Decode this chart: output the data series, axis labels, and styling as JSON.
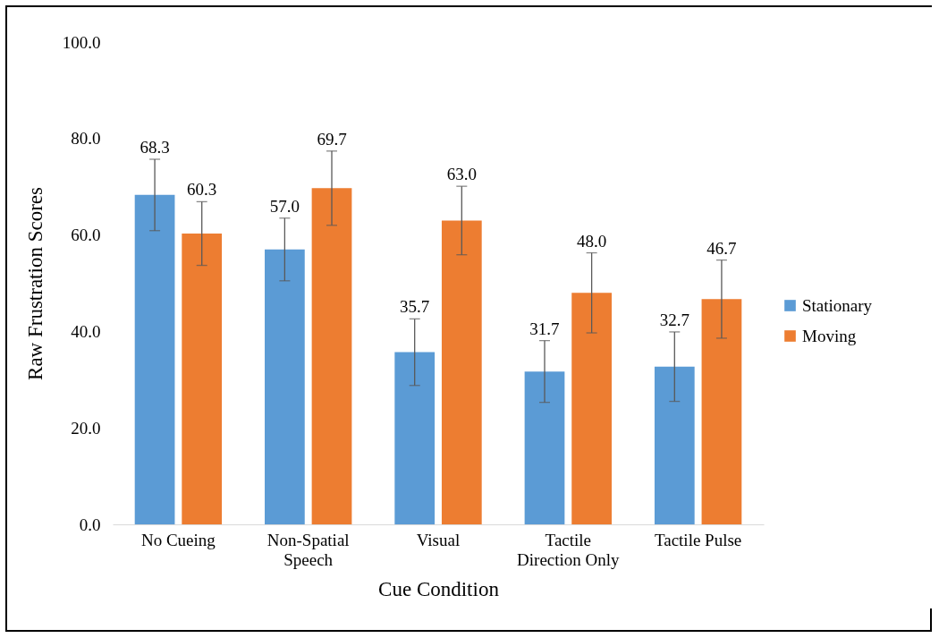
{
  "chart_data": {
    "type": "bar",
    "xlabel": "Cue Condition",
    "ylabel": "Raw Frustration Scores",
    "categories": [
      "No Cueing",
      "Non-Spatial Speech",
      "Visual",
      "Tactile Direction Only",
      "Tactile Pulse"
    ],
    "series": [
      {
        "name": "Stationary",
        "color": "#5b9bd5",
        "values": [
          68.3,
          57.0,
          35.7,
          31.7,
          32.7
        ],
        "errors": [
          7.4,
          6.5,
          6.9,
          6.4,
          7.2
        ],
        "value_labels": [
          "68.3",
          "57.0",
          "35.7",
          "31.7",
          "32.7"
        ]
      },
      {
        "name": "Moving",
        "color": "#ed7d31",
        "values": [
          60.3,
          69.7,
          63.0,
          48.0,
          46.7
        ],
        "errors": [
          6.6,
          7.7,
          7.1,
          8.3,
          8.1
        ],
        "value_labels": [
          "60.3",
          "69.7",
          "63.0",
          "48.0",
          "46.7"
        ]
      }
    ],
    "ylim": [
      0,
      100
    ],
    "yticks": [
      {
        "value": 0,
        "label": "0.0"
      },
      {
        "value": 20,
        "label": "20.0"
      },
      {
        "value": 40,
        "label": "40.0"
      },
      {
        "value": 60,
        "label": "60.0"
      },
      {
        "value": 80,
        "label": "80.0"
      },
      {
        "value": 100,
        "label": "100.0"
      }
    ],
    "grid": false,
    "legend": "right"
  }
}
